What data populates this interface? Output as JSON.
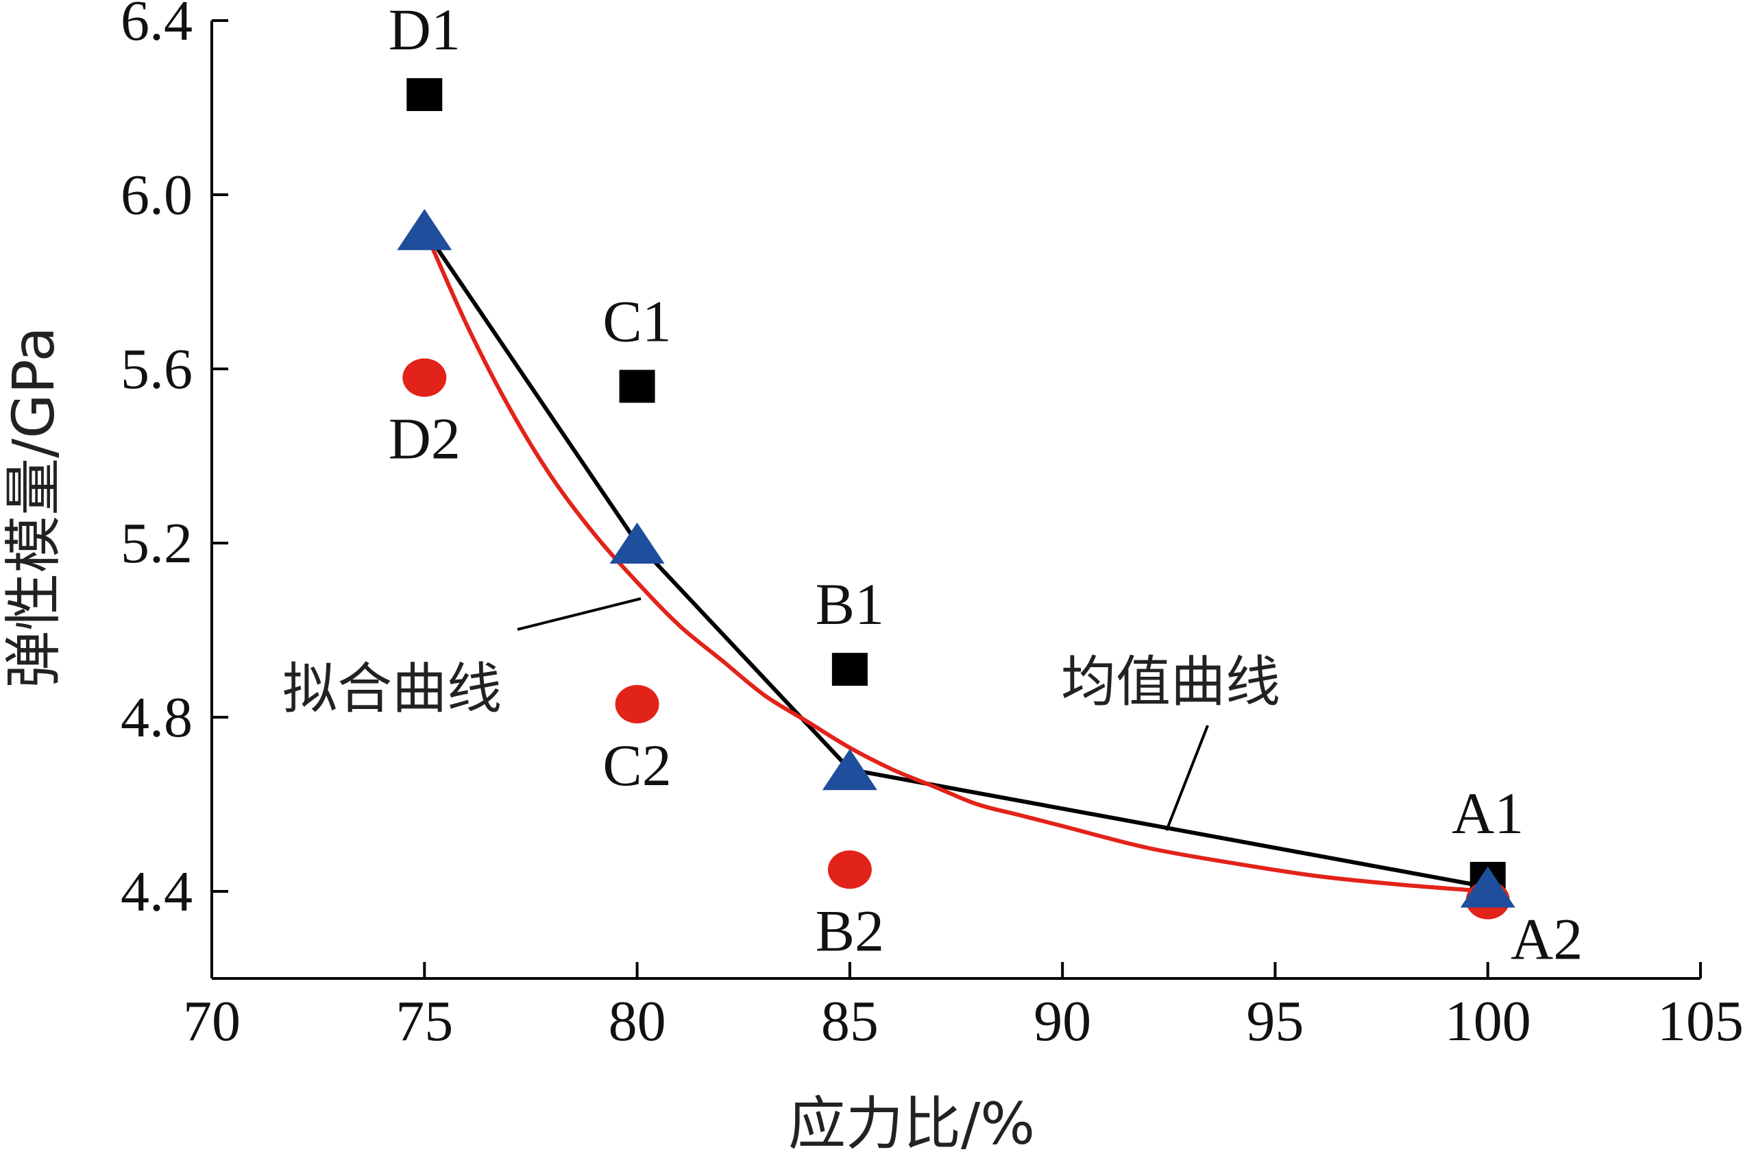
{
  "chart_data": {
    "type": "scatter",
    "xlabel": "应力比/%",
    "ylabel": "弹性模量/GPa",
    "xlim": [
      70,
      105
    ],
    "ylim": [
      4.2,
      6.4
    ],
    "x_ticks": [
      "70",
      "75",
      "80",
      "85",
      "90",
      "95",
      "100",
      "105"
    ],
    "y_ticks": [
      "4.4",
      "4.8",
      "5.2",
      "5.6",
      "6.0",
      "6.4"
    ],
    "grid": false,
    "series": [
      {
        "marker": "square",
        "color": "#000000",
        "points": [
          {
            "x": 75,
            "y": 6.23,
            "label": "D1"
          },
          {
            "x": 80,
            "y": 5.56,
            "label": "C1"
          },
          {
            "x": 85,
            "y": 4.91,
            "label": "B1"
          },
          {
            "x": 100,
            "y": 4.43,
            "label": "A1"
          }
        ]
      },
      {
        "marker": "circle",
        "color": "#e2231a",
        "points": [
          {
            "x": 75,
            "y": 5.58,
            "label": "D2"
          },
          {
            "x": 80,
            "y": 4.83,
            "label": "C2"
          },
          {
            "x": 85,
            "y": 4.45,
            "label": "B2"
          },
          {
            "x": 100,
            "y": 4.38,
            "label": "A2"
          }
        ]
      },
      {
        "marker": "triangle",
        "color": "#1f4e9c",
        "points": [
          {
            "x": 75,
            "y": 5.92
          },
          {
            "x": 80,
            "y": 5.2
          },
          {
            "x": 85,
            "y": 4.68
          },
          {
            "x": 100,
            "y": 4.41
          }
        ]
      }
    ],
    "lines": [
      {
        "name": "均值曲线",
        "color": "#000000",
        "points": [
          [
            75,
            5.92
          ],
          [
            80,
            5.2
          ],
          [
            85,
            4.68
          ],
          [
            100,
            4.41
          ]
        ]
      },
      {
        "name": "拟合曲线",
        "color": "#e2231a",
        "points": [
          [
            75,
            5.92
          ],
          [
            76,
            5.7
          ],
          [
            77,
            5.51
          ],
          [
            78,
            5.35
          ],
          [
            79,
            5.22
          ],
          [
            80,
            5.11
          ],
          [
            81,
            5.01
          ],
          [
            82,
            4.93
          ],
          [
            83,
            4.85
          ],
          [
            84,
            4.79
          ],
          [
            85,
            4.73
          ],
          [
            86,
            4.68
          ],
          [
            87,
            4.64
          ],
          [
            88,
            4.6
          ],
          [
            89,
            4.575
          ],
          [
            90,
            4.55
          ],
          [
            92,
            4.5
          ],
          [
            94,
            4.465
          ],
          [
            96,
            4.435
          ],
          [
            98,
            4.415
          ],
          [
            100,
            4.4
          ]
        ]
      }
    ],
    "annotations": [
      "拟合曲线",
      "均值曲线"
    ]
  }
}
